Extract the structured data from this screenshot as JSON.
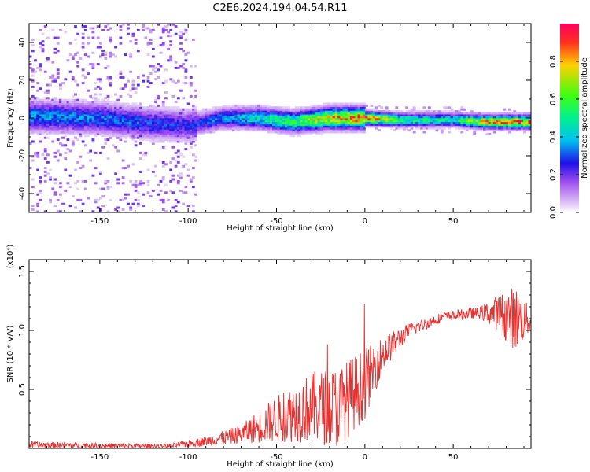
{
  "title": "C2E6.2024.194.04.54.R11",
  "colors": {
    "snr_line": "#e8302e",
    "axis": "#000000",
    "colormap": [
      "#ffffff",
      "#c9a8f2",
      "#8040f0",
      "#2a10e8",
      "#00bcf0",
      "#00f0a0",
      "#40ff20",
      "#ffc000",
      "#ff2030"
    ]
  },
  "chart_data": [
    {
      "type": "heatmap",
      "xlabel": "Height of straight line (km)",
      "ylabel": "Frequency (Hz)",
      "xlim": [
        -190,
        94
      ],
      "ylim": [
        -50,
        50
      ],
      "xticks": [
        -150,
        -100,
        -50,
        0,
        50
      ],
      "yticks": [
        -40,
        -20,
        0,
        20,
        40
      ],
      "colorbar": {
        "label": "Normalized spectral amplitude",
        "range": [
          0,
          1
        ],
        "ticks": [
          "0.0",
          "0.2",
          "0.4",
          "0.6",
          "0.8"
        ]
      },
      "ridge": [
        {
          "x": -190,
          "freq": 1,
          "amp": 0.35
        },
        {
          "x": -150,
          "freq": 0,
          "amp": 0.32
        },
        {
          "x": -120,
          "freq": -3,
          "amp": 0.28
        },
        {
          "x": -100,
          "freq": -4,
          "amp": 0.25
        },
        {
          "x": -80,
          "freq": 0,
          "amp": 0.33
        },
        {
          "x": -60,
          "freq": 0,
          "amp": 0.45
        },
        {
          "x": -40,
          "freq": -2,
          "amp": 0.55
        },
        {
          "x": -20,
          "freq": 0,
          "amp": 0.75
        },
        {
          "x": 0,
          "freq": 0,
          "amp": 0.85
        },
        {
          "x": 20,
          "freq": -1,
          "amp": 0.55
        },
        {
          "x": 50,
          "freq": -1,
          "amp": 0.45
        },
        {
          "x": 70,
          "freq": -2,
          "amp": 0.8
        },
        {
          "x": 94,
          "freq": -2,
          "amp": 0.85
        }
      ],
      "noise_region_x": [
        -190,
        -95
      ]
    },
    {
      "type": "line",
      "xlabel": "Height of straight line (km)",
      "ylabel": "SNR (10 * V/V)",
      "y_multiplier": "(x10⁴)",
      "xlim": [
        -190,
        94
      ],
      "ylim": [
        0,
        1.6
      ],
      "xticks": [
        -150,
        -100,
        -50,
        0,
        50
      ],
      "yticks": [
        0.5,
        1.0,
        1.5
      ],
      "ytick_labels": [
        "0.5",
        "1.0",
        "1.5"
      ],
      "envelope": [
        {
          "x": -190,
          "mean": 0.03,
          "spread": 0.03
        },
        {
          "x": -130,
          "mean": 0.02,
          "spread": 0.02
        },
        {
          "x": -110,
          "mean": 0.02,
          "spread": 0.02
        },
        {
          "x": -90,
          "mean": 0.06,
          "spread": 0.04
        },
        {
          "x": -70,
          "mean": 0.12,
          "spread": 0.08
        },
        {
          "x": -50,
          "mean": 0.25,
          "spread": 0.2
        },
        {
          "x": -30,
          "mean": 0.35,
          "spread": 0.3
        },
        {
          "x": -15,
          "mean": 0.35,
          "spread": 0.35
        },
        {
          "x": 0,
          "mean": 0.55,
          "spread": 0.3
        },
        {
          "x": 10,
          "mean": 0.8,
          "spread": 0.15
        },
        {
          "x": 25,
          "mean": 1.0,
          "spread": 0.06
        },
        {
          "x": 45,
          "mean": 1.12,
          "spread": 0.04
        },
        {
          "x": 65,
          "mean": 1.15,
          "spread": 0.05
        },
        {
          "x": 75,
          "mean": 1.15,
          "spread": 0.15
        },
        {
          "x": 85,
          "mean": 1.1,
          "spread": 0.28
        },
        {
          "x": 94,
          "mean": 1.08,
          "spread": 0.1
        }
      ]
    }
  ]
}
